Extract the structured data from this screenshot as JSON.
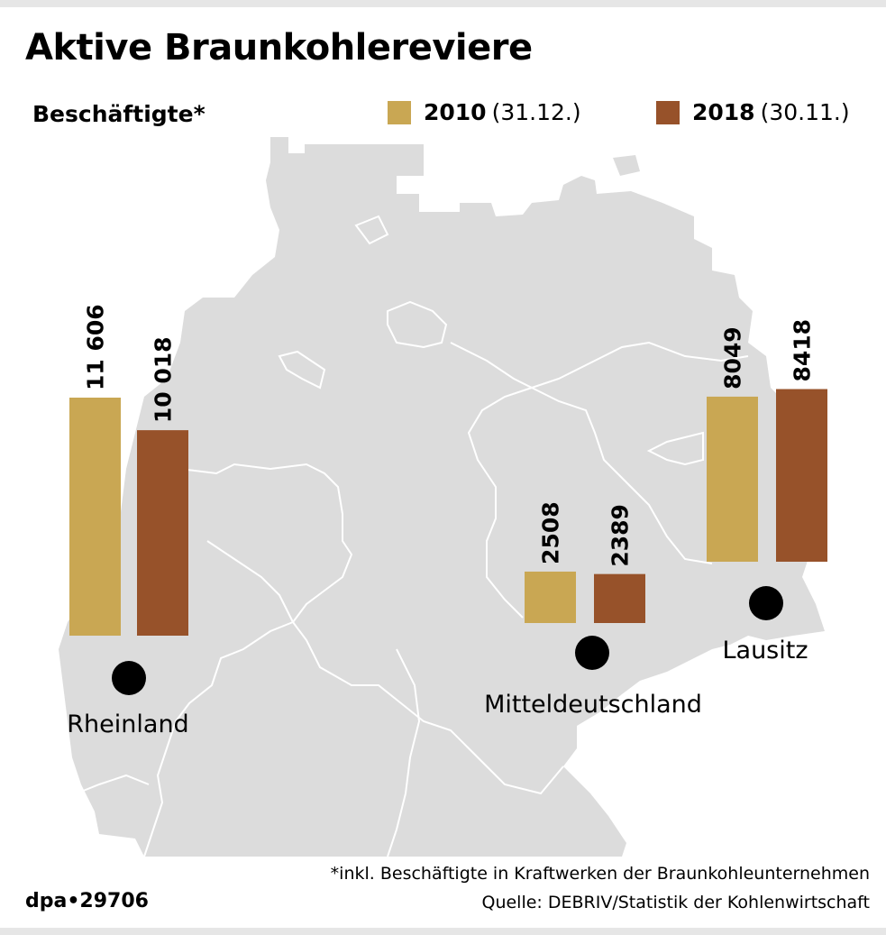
{
  "header": {
    "title": "Aktive Braunkohlereviere",
    "subtitle": "Beschäftigte*"
  },
  "legend": [
    {
      "year": "2010",
      "date": "(31.12.)",
      "color": "#c9a753"
    },
    {
      "year": "2018",
      "date": "(30.11.)",
      "color": "#97522a"
    }
  ],
  "chart_data": {
    "type": "bar",
    "title": "Aktive Braunkohlereviere",
    "subtitle": "Beschäftigte*",
    "categories": [
      "Rheinland",
      "Mitteldeutschland",
      "Lausitz"
    ],
    "series": [
      {
        "name": "2010 (31.12.)",
        "values": [
          11606,
          2508,
          8049
        ],
        "labels": [
          "11 606",
          "2508",
          "8049"
        ]
      },
      {
        "name": "2018 (30.11.)",
        "values": [
          10018,
          2389,
          8418
        ],
        "labels": [
          "10 018",
          "2389",
          "8418"
        ]
      }
    ],
    "legend": "top-right",
    "background": "map of Germany with region markers",
    "map_color": "#dcdcdc",
    "marker_color": "#000000"
  },
  "footer": {
    "note": "*inkl. Beschäftigte in Kraftwerken der Braunkohleunternehmen",
    "source": "Quelle: DEBRIV/Statistik der Kohlenwirtschaft",
    "credit": "dpa•29706"
  }
}
